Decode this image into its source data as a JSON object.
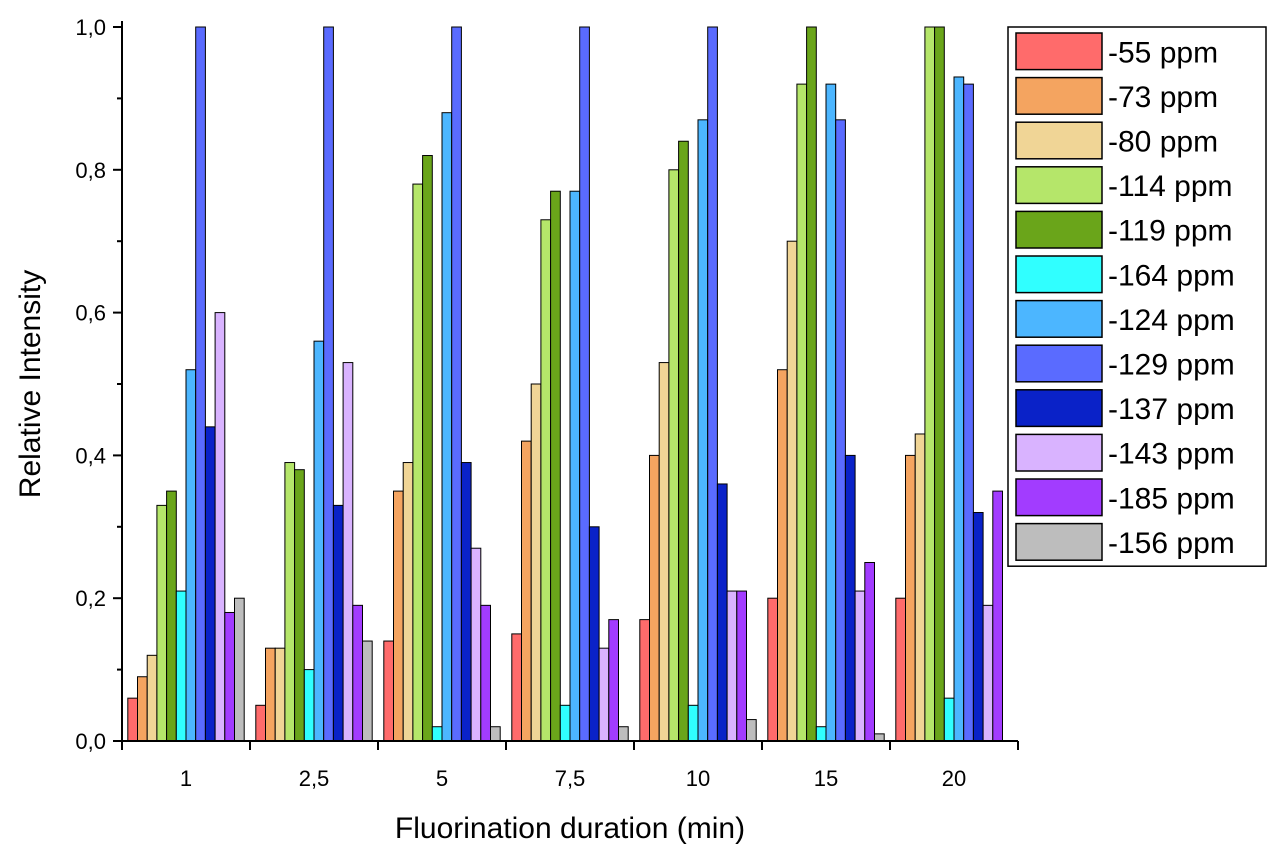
{
  "chart_data": {
    "type": "bar",
    "xlabel": "Fluorination duration (min)",
    "ylabel": "Relative Intensity",
    "ylim": [
      0,
      1.0
    ],
    "yticks": [
      "0,0",
      "0,2",
      "0,4",
      "0,6",
      "0,8",
      "1,0"
    ],
    "categories": [
      "1",
      "2,5",
      "5",
      "7,5",
      "10",
      "15",
      "20"
    ],
    "legend_position": "top-right, outside plot",
    "series": [
      {
        "name": "-55 ppm",
        "color": "#ff6b6b",
        "values": [
          0.06,
          0.05,
          0.14,
          0.15,
          0.17,
          0.2,
          0.2
        ]
      },
      {
        "name": "-73 ppm",
        "color": "#f4a460",
        "values": [
          0.09,
          0.13,
          0.35,
          0.42,
          0.4,
          0.52,
          0.4
        ]
      },
      {
        "name": "-80 ppm",
        "color": "#f0d596",
        "values": [
          0.12,
          0.13,
          0.39,
          0.5,
          0.53,
          0.7,
          0.43
        ]
      },
      {
        "name": "-114 ppm",
        "color": "#b5e66a",
        "values": [
          0.33,
          0.39,
          0.78,
          0.73,
          0.8,
          0.92,
          1.0
        ]
      },
      {
        "name": "-119 ppm",
        "color": "#6aa51a",
        "values": [
          0.35,
          0.38,
          0.82,
          0.77,
          0.84,
          1.0,
          1.0
        ]
      },
      {
        "name": "-164 ppm",
        "color": "#30ffff",
        "values": [
          0.21,
          0.1,
          0.02,
          0.05,
          0.05,
          0.02,
          0.06
        ]
      },
      {
        "name": "-124 ppm",
        "color": "#4cb6ff",
        "values": [
          0.52,
          0.56,
          0.88,
          0.77,
          0.87,
          0.92,
          0.93
        ]
      },
      {
        "name": "-129 ppm",
        "color": "#5a6bff",
        "values": [
          1.0,
          1.0,
          1.0,
          1.0,
          1.0,
          0.87,
          0.92
        ]
      },
      {
        "name": "-137 ppm",
        "color": "#0a22c8",
        "values": [
          0.44,
          0.33,
          0.39,
          0.3,
          0.36,
          0.4,
          0.32
        ]
      },
      {
        "name": "-143 ppm",
        "color": "#d9b3ff",
        "values": [
          0.6,
          0.53,
          0.27,
          0.13,
          0.21,
          0.21,
          0.19
        ]
      },
      {
        "name": "-185 ppm",
        "color": "#a23cff",
        "values": [
          0.18,
          0.19,
          0.19,
          0.17,
          0.21,
          0.25,
          0.35
        ]
      },
      {
        "name": "-156 ppm",
        "color": "#bdbdbd",
        "values": [
          0.2,
          0.14,
          0.02,
          0.02,
          0.03,
          0.01,
          0.0
        ]
      }
    ]
  }
}
